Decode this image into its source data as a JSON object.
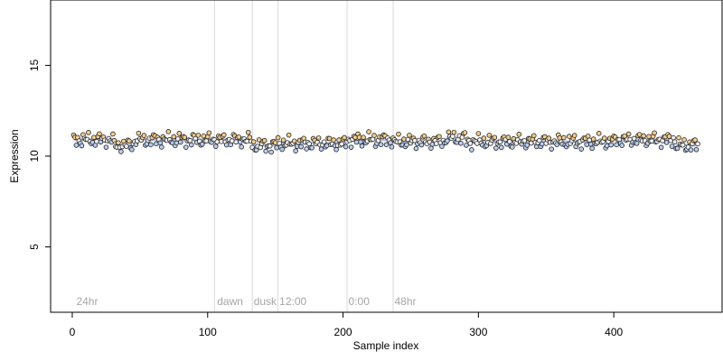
{
  "chart_data": {
    "type": "scatter",
    "title": "",
    "xlabel": "Sample index",
    "ylabel": "Expression",
    "xlim": [
      -16,
      480
    ],
    "ylim": [
      1.4,
      18.6
    ],
    "x_ticks": [
      0,
      100,
      200,
      300,
      400
    ],
    "x_tick_labels": [
      "0",
      "100",
      "200",
      "300",
      "400"
    ],
    "y_ticks": [
      5,
      10,
      15
    ],
    "y_tick_labels": [
      "5",
      "10",
      "15"
    ],
    "grid": false,
    "legend": "none",
    "sample_count": 462,
    "vertical_markers": [
      105,
      133,
      152,
      203,
      237
    ],
    "segment_labels": [
      {
        "x": 3,
        "text": "24hr"
      },
      {
        "x": 107,
        "text": "dawn"
      },
      {
        "x": 134,
        "text": "dusk"
      },
      {
        "x": 153,
        "text": "12:00"
      },
      {
        "x": 204,
        "text": "0:00"
      },
      {
        "x": 238,
        "text": "48hr"
      }
    ],
    "segments": [
      {
        "start": 1,
        "end": 30,
        "mean": 10.9
      },
      {
        "start": 31,
        "end": 45,
        "mean": 10.6
      },
      {
        "start": 46,
        "end": 104,
        "mean": 10.9
      },
      {
        "start": 105,
        "end": 132,
        "mean": 10.9
      },
      {
        "start": 133,
        "end": 151,
        "mean": 10.6
      },
      {
        "start": 152,
        "end": 202,
        "mean": 10.7
      },
      {
        "start": 203,
        "end": 236,
        "mean": 10.9
      },
      {
        "start": 237,
        "end": 275,
        "mean": 10.8
      },
      {
        "start": 276,
        "end": 290,
        "mean": 11.0
      },
      {
        "start": 291,
        "end": 400,
        "mean": 10.8
      },
      {
        "start": 401,
        "end": 445,
        "mean": 10.9
      },
      {
        "start": 446,
        "end": 462,
        "mean": 10.6
      }
    ],
    "colors": {
      "low_point": "#b9cdf0",
      "high_point": "#f2cc8f",
      "mid_point": "#f2f2f2",
      "point_edge": "#222222",
      "marker_line": "#d9d9d9",
      "segment_label": "#a6a6a6",
      "segment_bar": "#9fb4dc",
      "axis": "#000000"
    }
  }
}
